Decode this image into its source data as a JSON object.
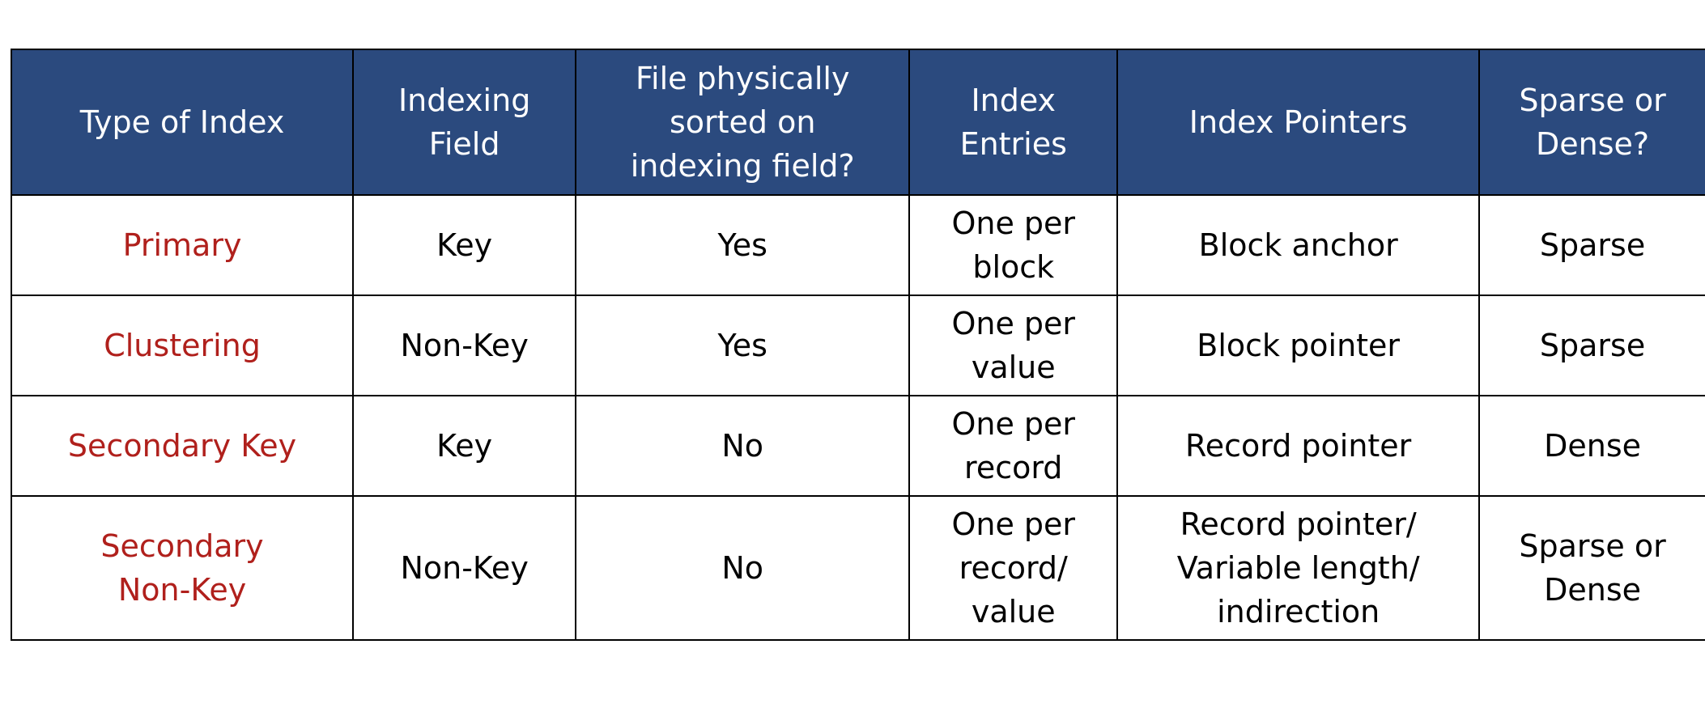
{
  "colors": {
    "header_background": "#2b4a7e",
    "header_text": "#ffffff",
    "type_text": "#b0201c",
    "body_text": "#000000",
    "border": "#000000"
  },
  "table": {
    "headers": [
      "Type of Index",
      "Indexing\nField",
      "File physically\nsorted on\nindexing field?",
      "Index\nEntries",
      "Index Pointers",
      "Sparse or\nDense?"
    ],
    "rows": [
      {
        "type": "Primary",
        "indexing_field": "Key",
        "physically_sorted": "Yes",
        "index_entries": "One per\nblock",
        "index_pointers": "Block anchor",
        "sparse_or_dense": "Sparse"
      },
      {
        "type": "Clustering",
        "indexing_field": "Non-Key",
        "physically_sorted": "Yes",
        "index_entries": "One per\nvalue",
        "index_pointers": "Block pointer",
        "sparse_or_dense": "Sparse"
      },
      {
        "type": "Secondary Key",
        "indexing_field": "Key",
        "physically_sorted": "No",
        "index_entries": "One per\nrecord",
        "index_pointers": "Record pointer",
        "sparse_or_dense": "Dense"
      },
      {
        "type": "Secondary\nNon-Key",
        "indexing_field": "Non-Key",
        "physically_sorted": "No",
        "index_entries": "One per\nrecord/\nvalue",
        "index_pointers": "Record pointer/\nVariable length/\nindirection",
        "sparse_or_dense": "Sparse or\nDense"
      }
    ]
  }
}
